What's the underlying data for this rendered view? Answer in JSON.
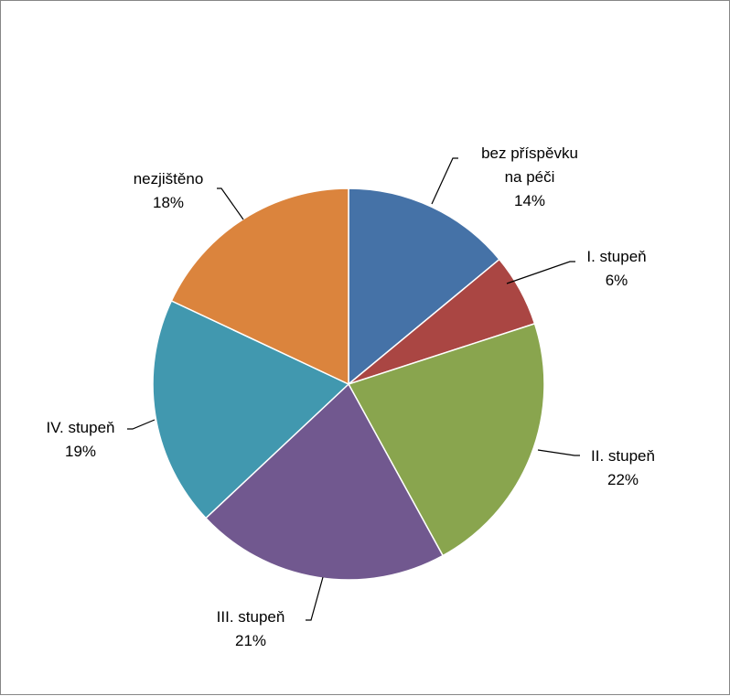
{
  "chart_data": {
    "type": "pie",
    "title": "",
    "slices": [
      {
        "name": "bez příspěvku na péči",
        "lines": [
          "bez příspěvku",
          "na péči"
        ],
        "value": 14,
        "label": "14%",
        "color": "#4572a7"
      },
      {
        "name": "I. stupeň",
        "lines": [
          "I. stupeň"
        ],
        "value": 6,
        "label": "6%",
        "color": "#aa4643"
      },
      {
        "name": "II. stupeň",
        "lines": [
          "II. stupeň"
        ],
        "value": 22,
        "label": "22%",
        "color": "#89a54e"
      },
      {
        "name": "III. stupeň",
        "lines": [
          "III. stupeň"
        ],
        "value": 21,
        "label": "21%",
        "color": "#71588f"
      },
      {
        "name": "IV. stupeň",
        "lines": [
          "IV. stupeň"
        ],
        "value": 19,
        "label": "19%",
        "color": "#4198af"
      },
      {
        "name": "nezjištěno",
        "lines": [
          "nezjištěno"
        ],
        "value": 18,
        "label": "18%",
        "color": "#db843d"
      }
    ],
    "legend": "none",
    "start": "12 o'clock, clockwise"
  }
}
